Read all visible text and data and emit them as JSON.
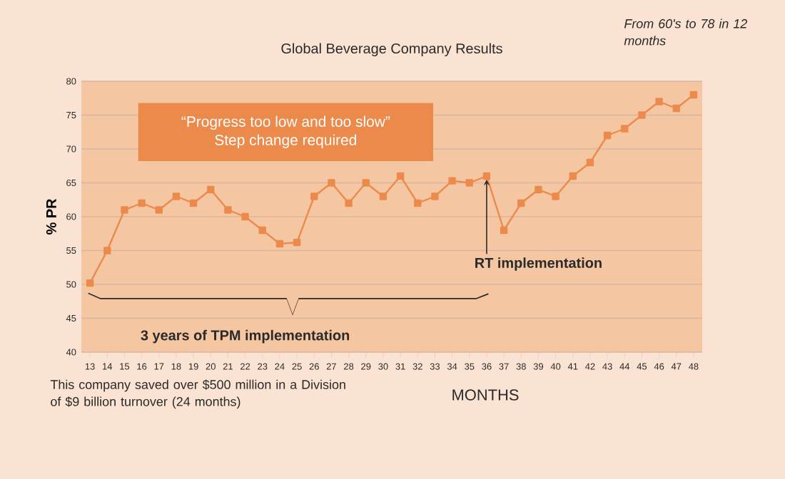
{
  "chart_data": {
    "type": "line",
    "title": "Global Beverage Company Results",
    "xlabel": "MONTHS",
    "ylabel": "% PR",
    "categories": [
      "13",
      "14",
      "15",
      "16",
      "17",
      "18",
      "19",
      "20",
      "21",
      "22",
      "23",
      "24",
      "25",
      "26",
      "27",
      "28",
      "29",
      "30",
      "31",
      "32",
      "33",
      "34",
      "35",
      "36",
      "37",
      "38",
      "39",
      "40",
      "41",
      "42",
      "43",
      "44",
      "45",
      "46",
      "47",
      "48"
    ],
    "series": [
      {
        "color": "#ec8a4c",
        "values": [
          50.2,
          55,
          61,
          62,
          61,
          63,
          62,
          64,
          61,
          60,
          58,
          56,
          56.2,
          63,
          65,
          62,
          65,
          63,
          66,
          62,
          63,
          65.3,
          65,
          66,
          58,
          62,
          64,
          63,
          66,
          68,
          72,
          73,
          75,
          77,
          76,
          78
        ]
      }
    ],
    "ylim": [
      40,
      80
    ],
    "yticks": [
      40,
      45,
      50,
      55,
      60,
      65,
      70,
      75,
      80
    ],
    "grid": "y",
    "marker": "square",
    "line_style": "solid",
    "annotations": [
      "“Progress too low and too slow”",
      "Step change required",
      {
        "text": "RT implementation",
        "x": "36",
        "y": 66
      },
      "3 years of TPM implementation",
      "This company saved over $500 million in a Division of $9 billion turnover (24 months)",
      "*From 60's to 78 in 12 months*"
    ]
  }
}
